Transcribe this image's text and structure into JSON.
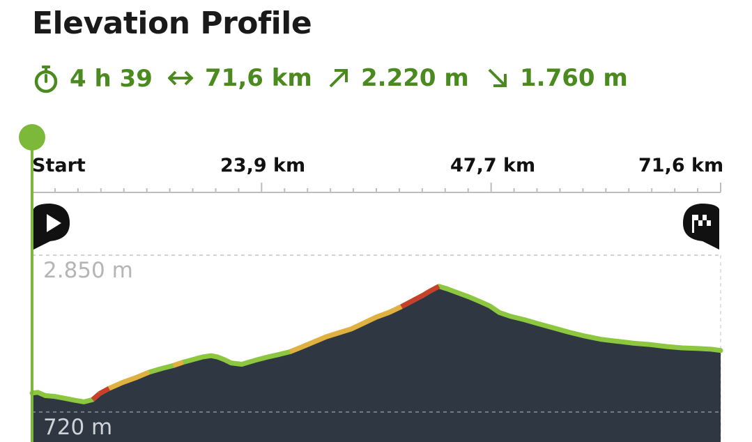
{
  "title": "Elevation Profile",
  "stats": {
    "duration": {
      "icon": "stopwatch-icon",
      "value": "4 h 39"
    },
    "distance": {
      "icon": "horizontal-arrows-icon",
      "value": "71,6 km"
    },
    "ascent": {
      "icon": "arrow-up-right-icon",
      "value": "2.220 m"
    },
    "descent": {
      "icon": "arrow-down-right-icon",
      "value": "1.760 m"
    }
  },
  "colors": {
    "accent": "#4a8a1e",
    "marker": "#7cb93a",
    "terrain": "#2e3742",
    "profile_line": "#8dc63f",
    "steep_moderate": "#e0b040",
    "steep_high": "#c8402c"
  },
  "markers": {
    "start_icon": "play-icon",
    "finish_icon": "checkered-flag-icon"
  },
  "chart_data": {
    "type": "area",
    "title": "",
    "xlabel": "",
    "ylabel": "",
    "x_unit": "km",
    "y_unit": "m",
    "x_tick_labels": [
      "Start",
      "23,9 km",
      "47,7 km",
      "71,6 km"
    ],
    "y_tick_labels": [
      "2.850 m",
      "720 m"
    ],
    "xlim": [
      0,
      71.6
    ],
    "ylim_labeled": [
      720,
      2850
    ],
    "series": [
      {
        "x": [
          0,
          0.6,
          1.4,
          2.3,
          3.4,
          4.4,
          5.4,
          6.3,
          7.0,
          8.0,
          9.4,
          10.9,
          12.2,
          13.6,
          14.7,
          15.7,
          16.7,
          17.7,
          18.6,
          19.3,
          20.0,
          20.7,
          21.8,
          23.2,
          24.5,
          25.7,
          26.8,
          28.0,
          29.3,
          30.6,
          31.9,
          33.2,
          34.5,
          35.8,
          37.1,
          38.4,
          39.7,
          40.6,
          41.4,
          42.3,
          43.2,
          44.3,
          45.4,
          46.7,
          47.6,
          48.6,
          49.8,
          51.2,
          52.6,
          54.1,
          55.8,
          57.5,
          59.2,
          60.9,
          62.6,
          64.3,
          66.0,
          67.6,
          69.3,
          70.6,
          71.6
        ],
        "y": [
          1010,
          1020,
          970,
          960,
          930,
          900,
          875,
          910,
          1000,
          1080,
          1170,
          1250,
          1330,
          1390,
          1430,
          1480,
          1520,
          1560,
          1580,
          1560,
          1520,
          1470,
          1450,
          1510,
          1560,
          1600,
          1640,
          1710,
          1790,
          1870,
          1930,
          1990,
          2080,
          2170,
          2240,
          2330,
          2430,
          2500,
          2570,
          2640,
          2600,
          2540,
          2480,
          2400,
          2340,
          2240,
          2180,
          2130,
          2070,
          2010,
          1940,
          1880,
          1830,
          1800,
          1770,
          1750,
          1720,
          1700,
          1690,
          1680,
          1660
        ]
      }
    ],
    "x_axis_position": "top",
    "grid": "dashed lines at labeled elevations"
  }
}
